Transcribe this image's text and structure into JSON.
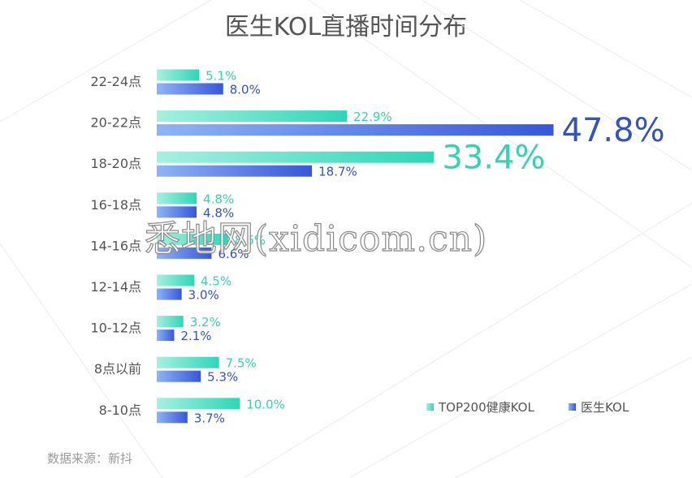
{
  "title": "医生KOL直播时间分布",
  "source": "数据来源：新抖",
  "watermark": "悉地网(xidicom.cn)",
  "colors": {
    "series1_start": "#a6f0df",
    "series1_end": "#2fd6b6",
    "series1_label": "#3ccfb2",
    "series2_start": "#8eb4f5",
    "series2_end": "#3757d9",
    "series2_label": "#3654b8",
    "category_text": "#555555",
    "background_lines": "#ececec"
  },
  "chart_data": {
    "type": "bar",
    "orientation": "horizontal",
    "unit": "%",
    "categories": [
      "22-24点",
      "20-22点",
      "18-20点",
      "16-18点",
      "14-16点",
      "12-14点",
      "10-12点",
      "8点以前",
      "8-10点"
    ],
    "series": [
      {
        "name": "TOP200健康KOL",
        "values": [
          5.1,
          22.9,
          33.4,
          4.8,
          8.6,
          4.5,
          3.2,
          7.5,
          10.0
        ],
        "labels": [
          "5.1%",
          "22.9%",
          "33.4%",
          "4.8%",
          "8.6%",
          "4.5%",
          "3.2%",
          "7.5%",
          "10.0%"
        ]
      },
      {
        "name": "医生KOL",
        "values": [
          8.0,
          47.8,
          18.7,
          4.8,
          6.6,
          3.0,
          2.1,
          5.3,
          3.7
        ],
        "labels": [
          "8.0%",
          "47.8%",
          "18.7%",
          "4.8%",
          "6.6%",
          "3.0%",
          "2.1%",
          "5.3%",
          "3.7%"
        ]
      }
    ],
    "highlight": [
      {
        "series": 1,
        "index": 1
      },
      {
        "series": 0,
        "index": 2
      }
    ],
    "xlim": [
      0,
      50
    ],
    "legend_position": "bottom-right",
    "grid": false
  }
}
